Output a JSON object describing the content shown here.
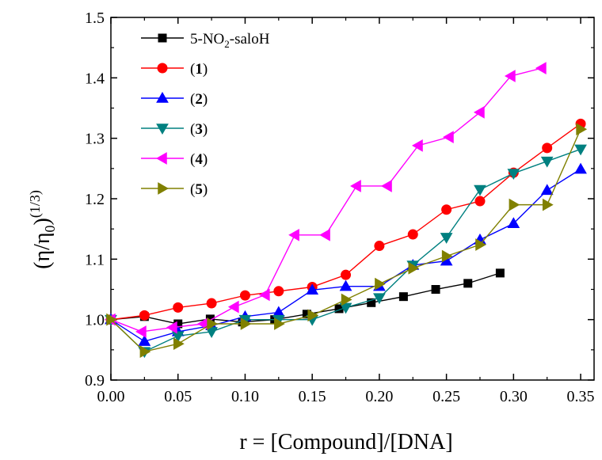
{
  "chart_data": {
    "type": "line",
    "xlabel": "r = [Compound]/[DNA]",
    "ylabel": "(η/η0)^(1/3)",
    "ylabel_parts": {
      "open": "(η/η",
      "sub": "0",
      "close": ")",
      "sup": "(1/3)"
    },
    "xlim": [
      0.0,
      0.36
    ],
    "ylim": [
      0.9,
      1.5
    ],
    "x_ticks": [
      "0.00",
      "0.05",
      "0.10",
      "0.15",
      "0.20",
      "0.25",
      "0.30",
      "0.35"
    ],
    "y_ticks": [
      "0.9",
      "1.0",
      "1.1",
      "1.2",
      "1.3",
      "1.4",
      "1.5"
    ],
    "grid": false,
    "legend_position": "top-left",
    "series": [
      {
        "name": "5-NO2-saloH",
        "label_parts": {
          "pre": "5-NO",
          "sub": "2",
          "post": "-saloH",
          "bold": ""
        },
        "color": "#000000",
        "marker": "square",
        "x": [
          0.0,
          0.025,
          0.05,
          0.074,
          0.098,
          0.122,
          0.146,
          0.17,
          0.194,
          0.218,
          0.242,
          0.266,
          0.29
        ],
        "y": [
          1.0,
          1.005,
          0.993,
          1.001,
          0.996,
          1.0,
          1.009,
          1.018,
          1.028,
          1.038,
          1.05,
          1.06,
          1.077
        ]
      },
      {
        "name": "(1)",
        "label_parts": {
          "pre": "(",
          "sub": "",
          "post": ")",
          "bold": "1"
        },
        "color": "#ff0000",
        "marker": "circle",
        "x": [
          0.0,
          0.025,
          0.05,
          0.075,
          0.1,
          0.125,
          0.15,
          0.175,
          0.2,
          0.225,
          0.25,
          0.275,
          0.3,
          0.325,
          0.35
        ],
        "y": [
          1.0,
          1.007,
          1.02,
          1.027,
          1.04,
          1.047,
          1.054,
          1.074,
          1.122,
          1.141,
          1.182,
          1.196,
          1.243,
          1.284,
          1.324
        ]
      },
      {
        "name": "(2)",
        "label_parts": {
          "pre": "(",
          "sub": "",
          "post": ")",
          "bold": "2"
        },
        "color": "#0000ff",
        "marker": "triangle-up",
        "x": [
          0.0,
          0.025,
          0.05,
          0.075,
          0.1,
          0.125,
          0.15,
          0.175,
          0.2,
          0.225,
          0.25,
          0.275,
          0.3,
          0.325,
          0.35
        ],
        "y": [
          1.0,
          0.964,
          0.98,
          0.99,
          1.005,
          1.012,
          1.049,
          1.055,
          1.055,
          1.09,
          1.097,
          1.132,
          1.159,
          1.214,
          1.249
        ]
      },
      {
        "name": "(3)",
        "label_parts": {
          "pre": "(",
          "sub": "",
          "post": ")",
          "bold": "3"
        },
        "color": "#008080",
        "marker": "triangle-down",
        "x": [
          0.0,
          0.025,
          0.05,
          0.075,
          0.1,
          0.125,
          0.15,
          0.175,
          0.2,
          0.225,
          0.25,
          0.275,
          0.3,
          0.325,
          0.35
        ],
        "y": [
          1.0,
          0.947,
          0.973,
          0.98,
          1.0,
          1.0,
          1.0,
          1.02,
          1.036,
          1.09,
          1.136,
          1.215,
          1.242,
          1.262,
          1.282
        ]
      },
      {
        "name": "(4)",
        "label_parts": {
          "pre": "(",
          "sub": "",
          "post": ")",
          "bold": "4"
        },
        "color": "#ff00ff",
        "marker": "triangle-left",
        "x": [
          0.0,
          0.023,
          0.046,
          0.069,
          0.092,
          0.115,
          0.137,
          0.16,
          0.183,
          0.206,
          0.229,
          0.252,
          0.275,
          0.298,
          0.321
        ],
        "y": [
          1.0,
          0.98,
          0.987,
          0.993,
          1.021,
          1.041,
          1.14,
          1.14,
          1.221,
          1.221,
          1.288,
          1.302,
          1.343,
          1.403,
          1.416
        ]
      },
      {
        "name": "(5)",
        "label_parts": {
          "pre": "(",
          "sub": "",
          "post": ")",
          "bold": "5"
        },
        "color": "#808000",
        "marker": "triangle-right",
        "x": [
          0.0,
          0.025,
          0.05,
          0.075,
          0.1,
          0.125,
          0.15,
          0.175,
          0.2,
          0.225,
          0.25,
          0.275,
          0.3,
          0.325,
          0.35
        ],
        "y": [
          1.0,
          0.947,
          0.96,
          0.993,
          0.993,
          0.993,
          1.007,
          1.033,
          1.059,
          1.085,
          1.105,
          1.124,
          1.19,
          1.19,
          1.315
        ]
      }
    ]
  }
}
